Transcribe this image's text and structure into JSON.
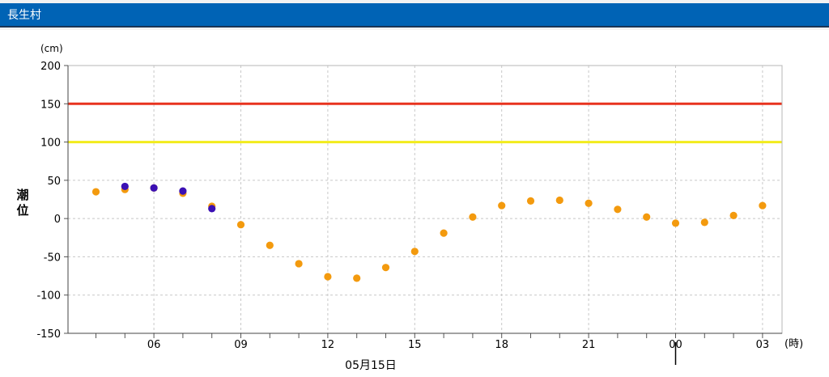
{
  "header": {
    "title": "長生村"
  },
  "chart_data": {
    "type": "scatter",
    "ylabel_chars": [
      "潮",
      "位"
    ],
    "yunit": "(cm)",
    "xunit": "(時)",
    "date_label": "05月15日",
    "ylim": [
      -150,
      200
    ],
    "yticks": [
      200,
      150,
      100,
      50,
      0,
      -50,
      -100,
      -150
    ],
    "ytick_labels": [
      "200",
      "150",
      "100",
      "50",
      "0",
      "-50",
      "-100",
      "-150"
    ],
    "xlim_hours": [
      3,
      28.5
    ],
    "xticks_hours": [
      6,
      9,
      12,
      15,
      18,
      21,
      24,
      27
    ],
    "xtick_labels": [
      "06",
      "09",
      "12",
      "15",
      "18",
      "21",
      "00",
      "03"
    ],
    "grid": true,
    "reference_lines": [
      {
        "value": 150,
        "color": "#e8321e"
      },
      {
        "value": 100,
        "color": "#f2ec1c"
      }
    ],
    "series": [
      {
        "color": "#f39a0e",
        "hours": [
          4,
          5,
          6,
          7,
          8,
          9,
          10,
          11,
          12,
          13,
          14,
          15,
          16,
          17,
          18,
          19,
          20,
          21,
          22,
          23,
          24,
          25,
          26,
          27
        ],
        "values": [
          35,
          38,
          40,
          33,
          16,
          -8,
          -35,
          -59,
          -76,
          -78,
          -64,
          -43,
          -19,
          2,
          17,
          23,
          24,
          20,
          12,
          2,
          -6,
          -5,
          4,
          17
        ]
      },
      {
        "color": "#3b10b4",
        "hours": [
          5,
          6,
          7,
          8
        ],
        "values": [
          42,
          40,
          36,
          13
        ]
      }
    ]
  }
}
